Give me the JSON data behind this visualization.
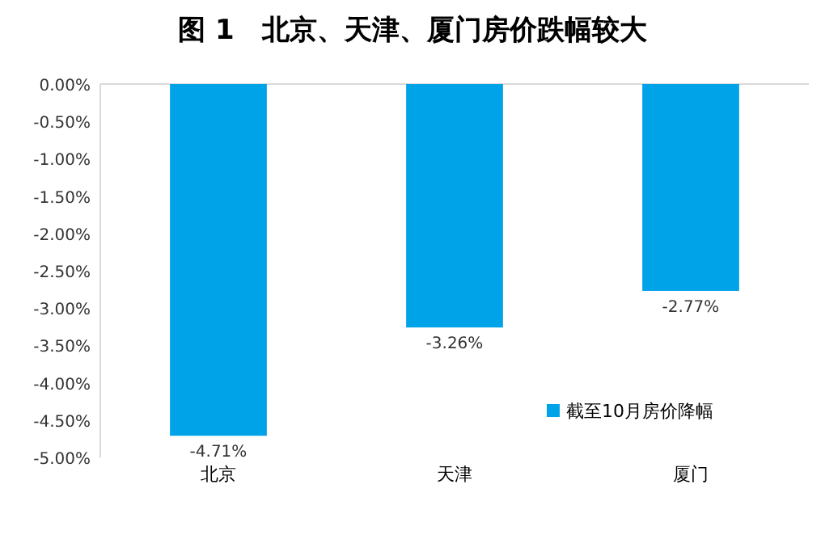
{
  "chart_data": {
    "type": "bar",
    "title": "图 1　北京、天津、厦门房价跌幅较大",
    "categories": [
      "北京",
      "天津",
      "厦门"
    ],
    "series": [
      {
        "name": "截至10月房价降幅",
        "color": "#00a2e8",
        "values": [
          -4.71,
          -3.26,
          -2.77
        ],
        "value_labels": [
          "-4.71%",
          "-3.26%",
          "-2.77%"
        ]
      }
    ],
    "ylim": [
      -5,
      0
    ],
    "yticks": [
      {
        "value": 0,
        "label": "0.00%"
      },
      {
        "value": -0.5,
        "label": "-0.50%"
      },
      {
        "value": -1,
        "label": "-1.00%"
      },
      {
        "value": -1.5,
        "label": "-1.50%"
      },
      {
        "value": -2,
        "label": "-2.00%"
      },
      {
        "value": -2.5,
        "label": "-2.50%"
      },
      {
        "value": -3,
        "label": "-3.00%"
      },
      {
        "value": -3.5,
        "label": "-3.50%"
      },
      {
        "value": -4,
        "label": "-4.00%"
      },
      {
        "value": -4.5,
        "label": "-4.50%"
      },
      {
        "value": -5,
        "label": "-5.00%"
      }
    ],
    "legend": "bottom right"
  }
}
